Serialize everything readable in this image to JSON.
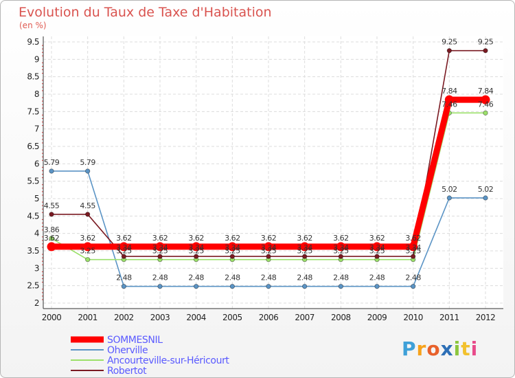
{
  "title": "Evolution du Taux de Taxe d'Habitation",
  "unit": "(en %)",
  "logo": {
    "letters": [
      "P",
      "r",
      "o",
      "x",
      "i",
      "t",
      "i"
    ],
    "colors": [
      "#3ea0d8",
      "#f7a21b",
      "#e8612b",
      "#2d6fb6",
      "#8cc63e",
      "#f2c12e",
      "#e84b8a"
    ]
  },
  "chart_data": {
    "type": "line",
    "x": [
      "2000",
      "2001",
      "2002",
      "2003",
      "2004",
      "2005",
      "2006",
      "2007",
      "2008",
      "2009",
      "2010",
      "2011",
      "2012"
    ],
    "ylim": [
      2,
      9.5
    ],
    "yticks": [
      "2",
      "2.5",
      "3",
      "3.5",
      "4",
      "4.5",
      "5",
      "5.5",
      "6",
      "6.5",
      "7",
      "7.5",
      "8",
      "8.5",
      "9",
      "9.5"
    ],
    "grid": true,
    "legend_position": "bottom-left",
    "series": [
      {
        "name": "SOMMESNIL",
        "color": "#ff0000",
        "values": [
          3.62,
          3.62,
          3.62,
          3.62,
          3.62,
          3.62,
          3.62,
          3.62,
          3.62,
          3.62,
          3.62,
          7.84,
          7.84
        ],
        "labels": [
          "3.62",
          "3.62",
          "3.62",
          "3.62",
          "3.62",
          "3.62",
          "3.62",
          "3.62",
          "3.62",
          "3.62",
          "3.62",
          "7.84",
          "7.84"
        ]
      },
      {
        "name": "Oherville",
        "color": "#5b94c5",
        "values": [
          5.79,
          5.79,
          2.48,
          2.48,
          2.48,
          2.48,
          2.48,
          2.48,
          2.48,
          2.48,
          2.48,
          5.02,
          5.02
        ],
        "labels": [
          "5.79",
          "5.79",
          "2.48",
          "2.48",
          "2.48",
          "2.48",
          "2.48",
          "2.48",
          "2.48",
          "2.48",
          "2.48",
          "5.02",
          "5.02"
        ]
      },
      {
        "name": "Ancourteville-sur-Héricourt",
        "color": "#9be06a",
        "values": [
          3.86,
          3.25,
          3.25,
          3.25,
          3.25,
          3.25,
          3.25,
          3.25,
          3.25,
          3.25,
          3.25,
          7.46,
          7.46
        ],
        "labels": [
          "3.86",
          "3.25",
          "3.25",
          "3.25",
          "3.25",
          "3.25",
          "3.25",
          "3.25",
          "3.25",
          "3.25",
          "3.25",
          "7.46",
          "7.46"
        ]
      },
      {
        "name": "Robertot",
        "color": "#7a1a22",
        "values": [
          4.55,
          4.55,
          3.34,
          3.34,
          3.34,
          3.34,
          3.34,
          3.34,
          3.34,
          3.34,
          3.34,
          9.25,
          9.25
        ],
        "labels": [
          "4.55",
          "4.55",
          "3.34",
          "3.34",
          "3.34",
          "3.34",
          "3.34",
          "3.34",
          "3.34",
          "3.34",
          "3.34",
          "9.25",
          "9.25"
        ]
      }
    ]
  }
}
